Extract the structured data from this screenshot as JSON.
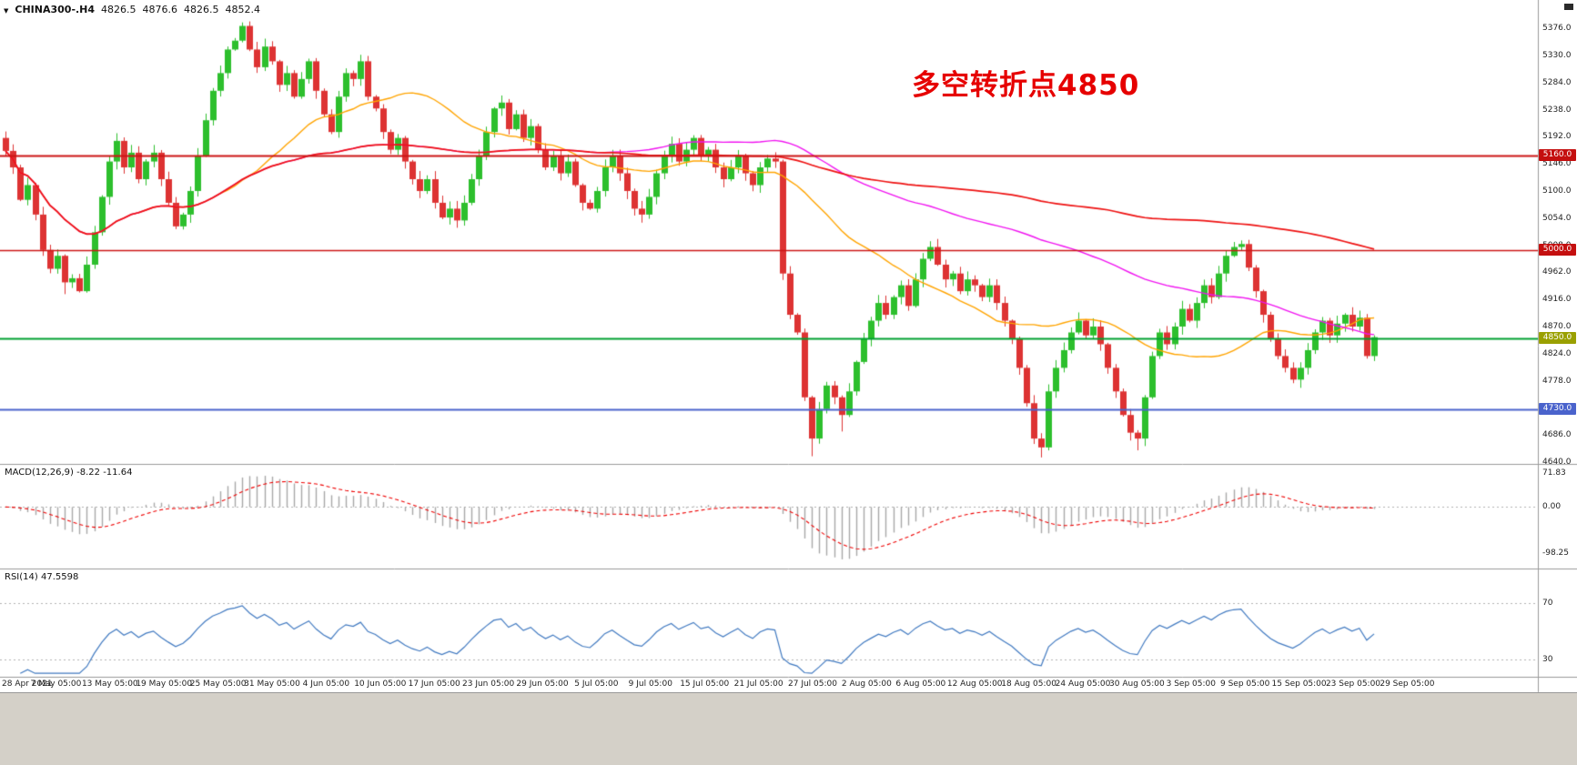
{
  "header": {
    "dropdown_icon": "▼",
    "symbol": "CHINA300-.H4",
    "open": "4826.5",
    "high": "4876.6",
    "low": "4826.5",
    "close": "4852.4"
  },
  "annotation": {
    "text": "多空转折点4850"
  },
  "indicators": {
    "macd": {
      "name": "MACD(12,26,9)",
      "values": "-8.22 -11.64",
      "axis_labels": [
        "71.83",
        "0.00",
        "-98.25"
      ],
      "fast": 12,
      "slow": 26,
      "signal_period": 9
    },
    "rsi": {
      "name": "RSI(14)",
      "value": "47.5598",
      "period": 14,
      "levels": [
        "70",
        "30"
      ]
    }
  },
  "colors": {
    "background": "#ffffff",
    "axis_line": "#9a9a9a",
    "grid_dotted": "#b0b0b0",
    "histogram": "#a8a8a8",
    "signal_line": "#ee0000",
    "rsi_line": "#4079c0",
    "footer_bg": "#d4d0c8",
    "annotation_red": "#e60000",
    "text": "#111111"
  },
  "chart_data": {
    "type": "candlestick",
    "title": "CHINA300- H4",
    "timeframe": "H4",
    "up_color": "#2dbf2d",
    "down_color": "#dd3333",
    "y_range": [
      4637,
      5424
    ],
    "first_open": 5190,
    "y_tick_labels": [
      "5376.0",
      "5330.0",
      "5284.0",
      "5238.0",
      "5192.0",
      "5146.0",
      "5100.0",
      "5054.0",
      "5008.0",
      "4962.0",
      "4916.0",
      "4870.0",
      "4824.0",
      "4778.0",
      "4732.0",
      "4686.0",
      "4640.0"
    ],
    "x_tick_labels": [
      "28 Apr 2021",
      "7 May 05:00",
      "13 May 05:00",
      "19 May 05:00",
      "25 May 05:00",
      "31 May 05:00",
      "4 Jun 05:00",
      "10 Jun 05:00",
      "17 Jun 05:00",
      "23 Jun 05:00",
      "29 Jun 05:00",
      "5 Jul 05:00",
      "9 Jul 05:00",
      "15 Jul 05:00",
      "21 Jul 05:00",
      "27 Jul 05:00",
      "2 Aug 05:00",
      "6 Aug 05:00",
      "12 Aug 05:00",
      "18 Aug 05:00",
      "24 Aug 05:00",
      "30 Aug 05:00",
      "3 Sep 05:00",
      "9 Sep 05:00",
      "15 Sep 05:00",
      "23 Sep 05:00",
      "29 Sep 05:00"
    ],
    "closes": [
      5168,
      5140,
      5085,
      5110,
      5060,
      5000,
      4968,
      4990,
      4945,
      4952,
      4930,
      4975,
      5030,
      5090,
      5150,
      5185,
      5140,
      5165,
      5120,
      5150,
      5165,
      5120,
      5080,
      5040,
      5060,
      5100,
      5160,
      5220,
      5270,
      5300,
      5340,
      5355,
      5380,
      5340,
      5310,
      5345,
      5320,
      5280,
      5300,
      5260,
      5290,
      5320,
      5270,
      5230,
      5200,
      5260,
      5300,
      5290,
      5320,
      5260,
      5240,
      5200,
      5170,
      5190,
      5150,
      5120,
      5100,
      5120,
      5080,
      5055,
      5070,
      5050,
      5080,
      5120,
      5160,
      5200,
      5240,
      5250,
      5205,
      5230,
      5190,
      5210,
      5170,
      5140,
      5160,
      5130,
      5150,
      5110,
      5080,
      5070,
      5100,
      5140,
      5160,
      5130,
      5100,
      5070,
      5060,
      5090,
      5130,
      5160,
      5180,
      5150,
      5170,
      5190,
      5160,
      5170,
      5140,
      5120,
      5140,
      5160,
      5130,
      5110,
      5140,
      5155,
      5150,
      4960,
      4890,
      4860,
      4750,
      4680,
      4730,
      4770,
      4750,
      4720,
      4760,
      4810,
      4850,
      4880,
      4910,
      4890,
      4920,
      4940,
      4905,
      4950,
      4985,
      5005,
      4975,
      4950,
      4960,
      4930,
      4950,
      4940,
      4920,
      4940,
      4910,
      4880,
      4850,
      4800,
      4740,
      4680,
      4665,
      4760,
      4800,
      4830,
      4860,
      4880,
      4855,
      4870,
      4840,
      4800,
      4760,
      4720,
      4690,
      4680,
      4750,
      4820,
      4860,
      4840,
      4870,
      4900,
      4880,
      4910,
      4940,
      4920,
      4960,
      4990,
      5005,
      5010,
      4970,
      4930,
      4890,
      4850,
      4820,
      4800,
      4780,
      4800,
      4830,
      4860,
      4880,
      4855,
      4875,
      4890,
      4870,
      4885,
      4820,
      4852
    ],
    "wick_overrides": {
      "highs": {
        "15": 5198,
        "32": 5386,
        "67": 5262
      },
      "lows": {
        "8": 4925,
        "109": 4650,
        "113": 4692,
        "140": 4648,
        "153": 4660
      }
    },
    "moving_averages": [
      {
        "period": 30,
        "color": "#ffa400",
        "width": 1.4
      },
      {
        "period": 80,
        "color": "#f013f0",
        "width": 1.4
      },
      {
        "period": 150,
        "color": "#ee1111",
        "width": 1.7
      }
    ],
    "levels": [
      {
        "price": 5160,
        "label": "5160.0",
        "color": "#cc1515",
        "width": 2,
        "label_bg": "#c40f0f",
        "label_fg": "#ffffff"
      },
      {
        "price": 5000,
        "label": "5000.0",
        "color": "#cc1515",
        "width": 1.5,
        "label_bg": "#c40f0f",
        "label_fg": "#ffffff"
      },
      {
        "price": 4850,
        "label": "4850.0",
        "color": "#00a030",
        "width": 2,
        "label_bg": "#9aa000",
        "label_fg": "#ffffff"
      },
      {
        "price": 4730,
        "label": "4730.0",
        "color": "#4a63cc",
        "width": 2,
        "label_bg": "#4a63cc",
        "label_fg": "#ffffff"
      }
    ]
  }
}
